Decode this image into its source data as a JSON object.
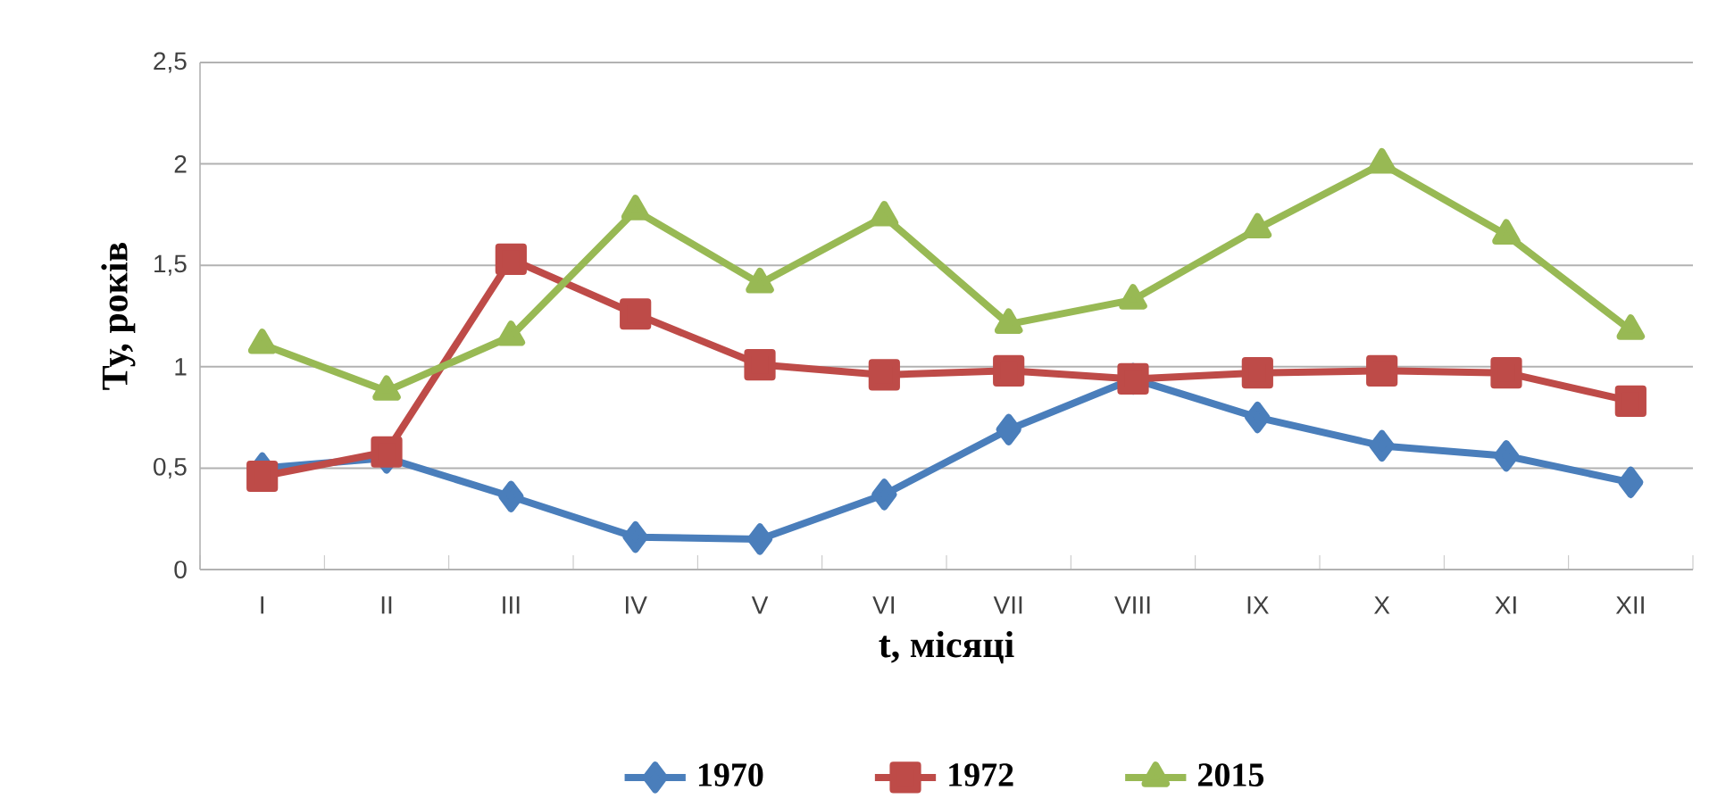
{
  "chart_data": {
    "type": "line",
    "xlabel": "t,  місяці",
    "ylabel": "Ту,  років",
    "categories": [
      "I",
      "II",
      "III",
      "IV",
      "V",
      "VI",
      "VII",
      "VIII",
      "IX",
      "X",
      "XI",
      "XII"
    ],
    "series": [
      {
        "name": "1970",
        "color": "#4a7ebb",
        "marker": "diamond",
        "values": [
          0.5,
          0.55,
          0.36,
          0.16,
          0.15,
          0.37,
          0.69,
          0.94,
          0.75,
          0.61,
          0.56,
          0.43
        ]
      },
      {
        "name": "1972",
        "color": "#be4b48",
        "marker": "square",
        "values": [
          0.46,
          0.58,
          1.53,
          1.26,
          1.01,
          0.96,
          0.98,
          0.94,
          0.97,
          0.98,
          0.97,
          0.83
        ]
      },
      {
        "name": "2015",
        "color": "#98b954",
        "marker": "triangle",
        "values": [
          1.11,
          0.88,
          1.15,
          1.77,
          1.41,
          1.74,
          1.21,
          1.33,
          1.68,
          2.0,
          1.65,
          1.18
        ]
      }
    ],
    "ylim": [
      0,
      2.5
    ],
    "yticks": [
      0,
      {
        "value": 0.5,
        "label": "0,5"
      },
      1,
      {
        "value": 1.5,
        "label": "1,5"
      },
      2,
      {
        "value": 2.5,
        "label": "2,5"
      }
    ],
    "grid": "y",
    "legend": "bottom",
    "line_style": "solid"
  }
}
